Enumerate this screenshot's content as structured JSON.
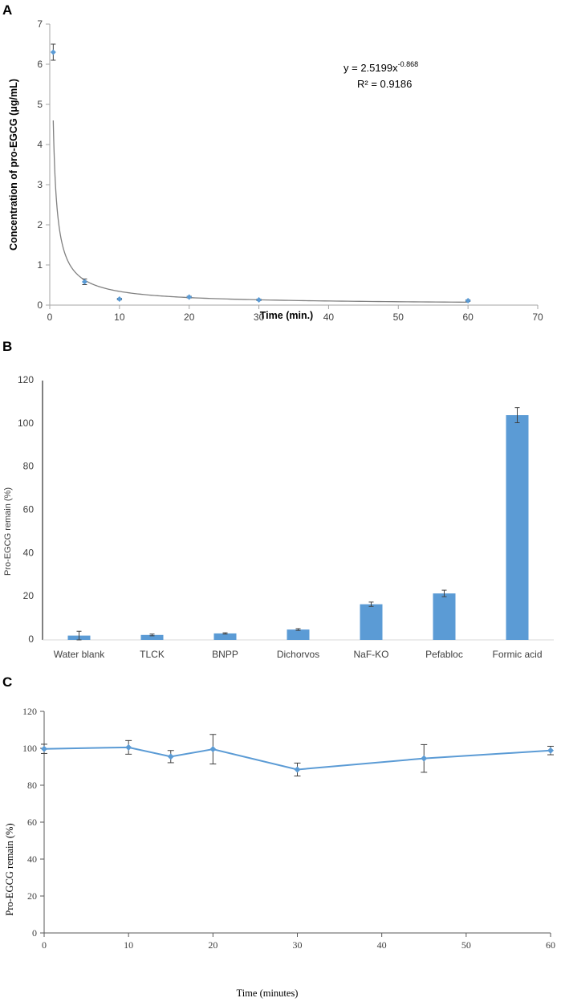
{
  "chart_data": [
    {
      "panel": "A",
      "type": "scatter",
      "title": "",
      "xlabel": "Time  (min.)",
      "ylabel": "Concentration of pro-EGCG (μg/mL)",
      "xlim": [
        0,
        70
      ],
      "ylim": [
        0,
        7
      ],
      "xticks": [
        0,
        10,
        20,
        30,
        40,
        50,
        60,
        70
      ],
      "yticks": [
        0,
        1,
        2,
        3,
        4,
        5,
        6,
        7
      ],
      "series": [
        {
          "name": "pro-EGCG",
          "x": [
            0.5,
            5,
            10,
            20,
            30,
            60
          ],
          "y": [
            6.3,
            0.58,
            0.15,
            0.2,
            0.13,
            0.11
          ],
          "err": [
            0.2,
            0.07,
            0.02,
            0.02,
            0.02,
            0.02
          ],
          "color": "#5b9bd5"
        }
      ],
      "trendline": {
        "type": "power",
        "a": 2.5199,
        "b": -0.868,
        "x_from": 0.5,
        "x_to": 60,
        "equation": "y = 2.5199x",
        "exponent": "-0.868",
        "r2_label": "R² = 0.9186",
        "color": "#808080"
      }
    },
    {
      "panel": "B",
      "type": "bar",
      "title": "",
      "xlabel": "",
      "ylabel": "Pro-EGCG remain (%)",
      "ylim": [
        0,
        120
      ],
      "yticks": [
        0,
        20,
        40,
        60,
        80,
        100,
        120
      ],
      "categories": [
        "Water blank",
        "TLCK",
        "BNPP",
        "Dichorvos",
        "NaF-KO",
        "Pefabloc",
        "Formic acid"
      ],
      "values": [
        2,
        2.3,
        3,
        4.8,
        16.5,
        21.5,
        104
      ],
      "err": [
        2,
        0.4,
        0.3,
        0.4,
        1,
        1.5,
        3.5
      ],
      "color": "#5b9bd5"
    },
    {
      "panel": "C",
      "type": "line",
      "title": "",
      "xlabel": "Time (minutes)",
      "ylabel": "Pro-EGCG remain (%)",
      "xlim": [
        0,
        60
      ],
      "ylim": [
        0,
        120
      ],
      "xticks": [
        0,
        10,
        20,
        30,
        40,
        50,
        60
      ],
      "yticks": [
        0,
        20,
        40,
        60,
        80,
        100,
        120
      ],
      "series": [
        {
          "name": "pro-EGCG",
          "x": [
            0,
            10,
            15,
            20,
            30,
            45,
            60
          ],
          "y": [
            99.7,
            100.5,
            95.5,
            99.5,
            88.5,
            94.5,
            98.8
          ],
          "err": [
            2.5,
            3.7,
            3.3,
            8,
            3.5,
            7.5,
            2.3
          ],
          "color": "#5b9bd5"
        }
      ]
    }
  ],
  "panels": {
    "a": "A",
    "b": "B",
    "c": "C"
  }
}
